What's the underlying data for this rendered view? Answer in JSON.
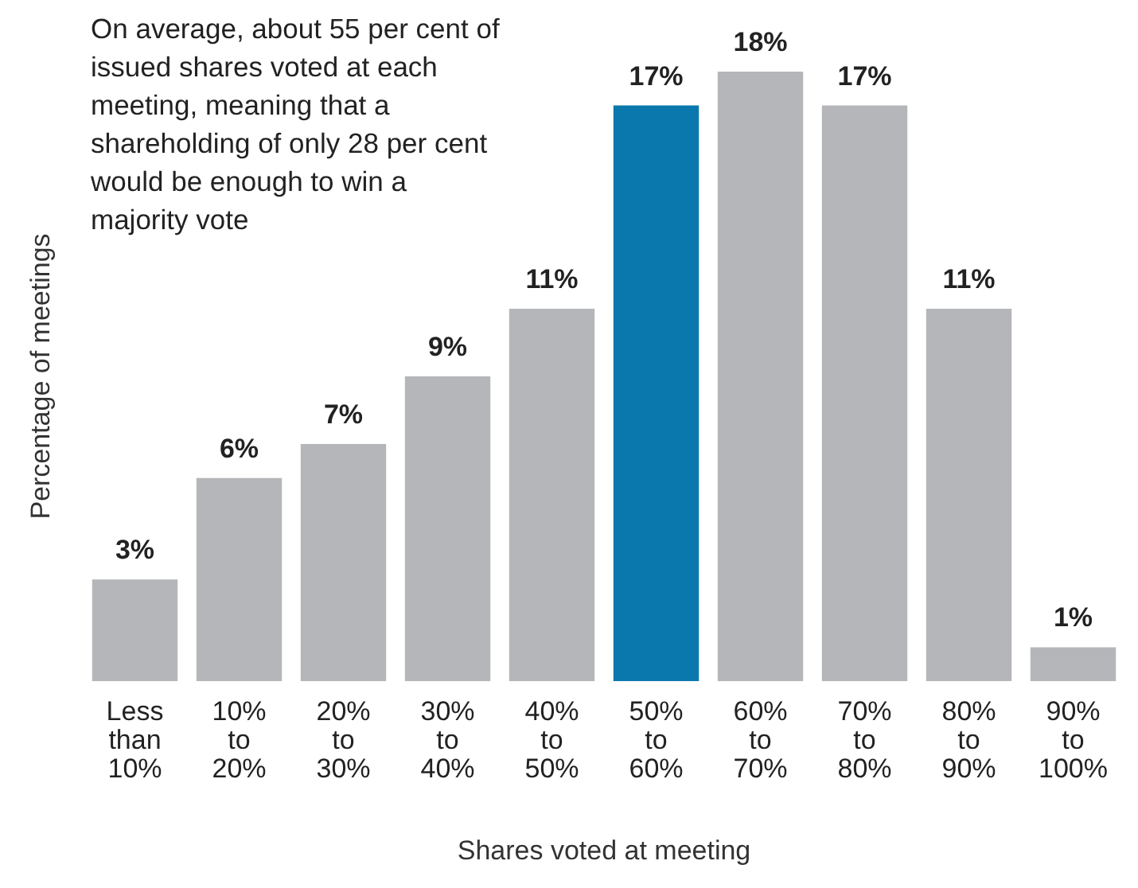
{
  "chart_data": {
    "type": "bar",
    "categories": [
      "Less than 10%",
      "10% to 20%",
      "20% to 30%",
      "30% to 40%",
      "40% to 50%",
      "50% to 60%",
      "60% to 70%",
      "70% to 80%",
      "80% to 90%",
      "90% to 100%"
    ],
    "values": [
      3,
      6,
      7,
      9,
      11,
      17,
      18,
      17,
      11,
      1
    ],
    "colors": [
      "#b5b6b9",
      "#b5b6b9",
      "#b5b6b9",
      "#b5b6b9",
      "#b5b6b9",
      "#0b78ad",
      "#b5b6b9",
      "#b5b6b9",
      "#b5b6b9",
      "#b5b6b9"
    ],
    "value_labels": [
      "3%",
      "6%",
      "7%",
      "9%",
      "11%",
      "17%",
      "18%",
      "17%",
      "11%",
      "1%"
    ],
    "xlabel": "Shares voted at meeting",
    "ylabel": "Percentage of meetings",
    "annotations": [
      "On average, about 55 per cent of issued shares voted at each meeting, meaning that a shareholding of only 28 per cent would be enough to win a majority vote"
    ],
    "grid": false
  }
}
